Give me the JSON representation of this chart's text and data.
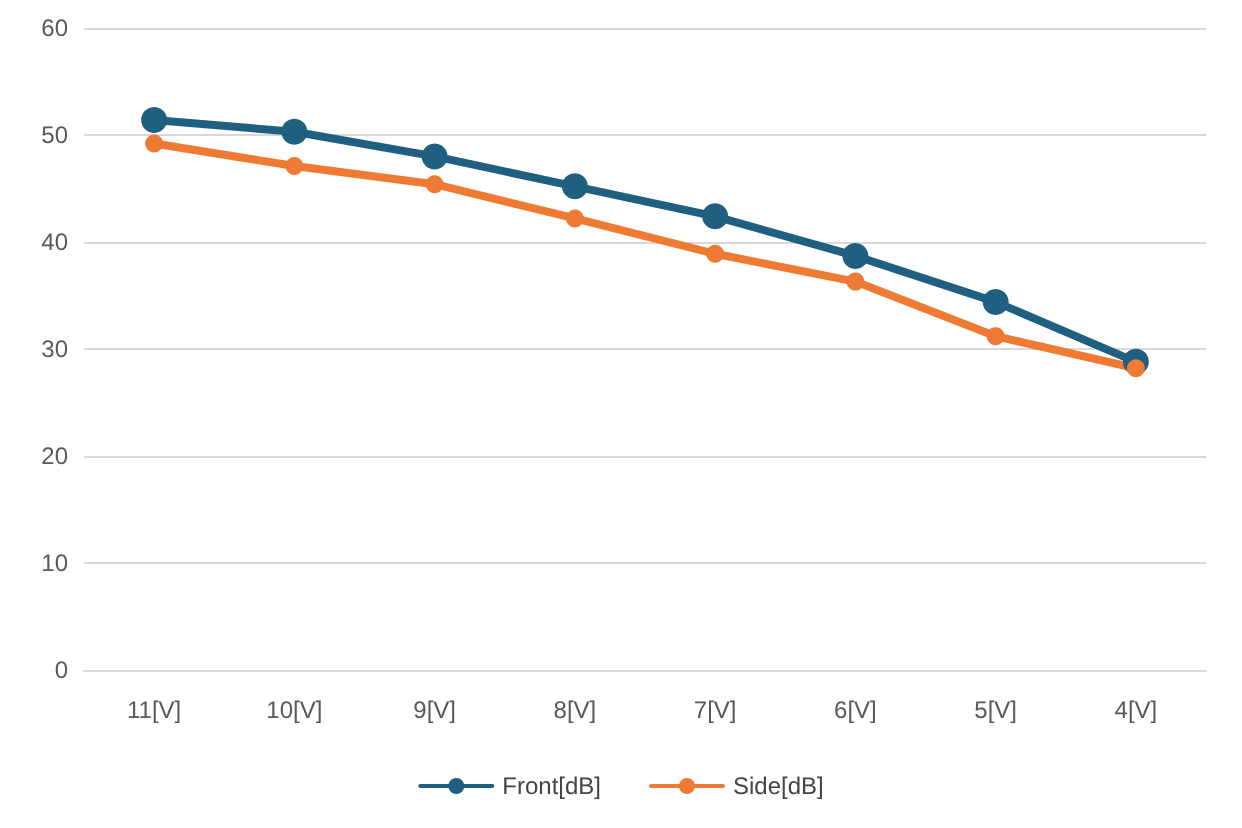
{
  "chart_data": {
    "type": "line",
    "categories": [
      "11[V]",
      "10[V]",
      "9[V]",
      "8[V]",
      "7[V]",
      "6[V]",
      "5[V]",
      "4[V]"
    ],
    "series": [
      {
        "name": "Front[dB]",
        "color": "#1f5f80",
        "values": [
          51.4,
          50.3,
          48.0,
          45.2,
          42.4,
          38.7,
          34.4,
          28.8
        ]
      },
      {
        "name": "Side[dB]",
        "color": "#ee7a33",
        "values": [
          49.2,
          47.1,
          45.4,
          42.2,
          38.9,
          36.3,
          31.2,
          28.2
        ]
      }
    ],
    "ylim": [
      0,
      60
    ],
    "yticks": [
      0,
      10,
      20,
      30,
      40,
      50,
      60
    ],
    "grid": "y",
    "legend": "bottom",
    "marker": "circle",
    "line_style": "solid"
  }
}
